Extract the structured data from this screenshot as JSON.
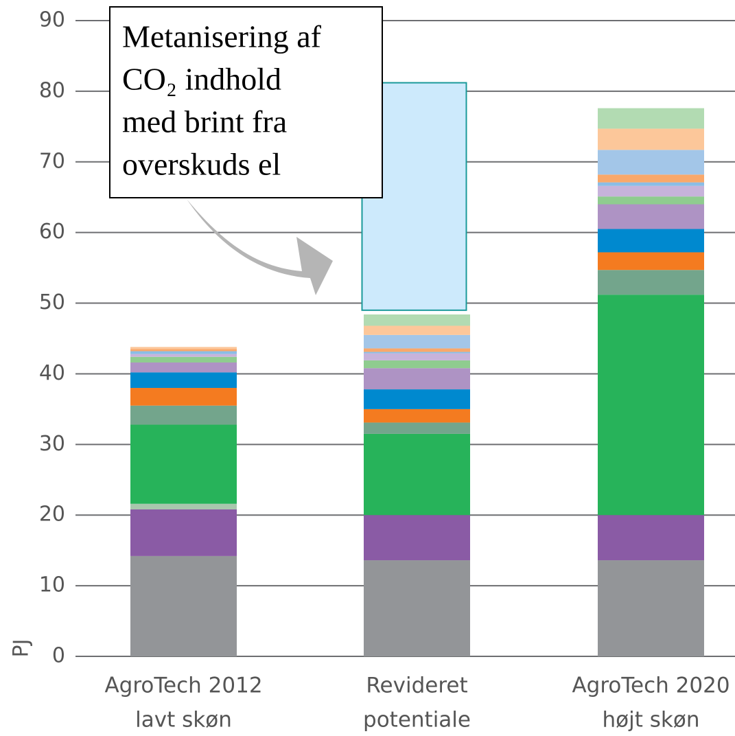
{
  "chart_data": {
    "type": "stacked_bar",
    "y_label": "PJ",
    "categories": [
      [
        "AgroTech 2012",
        "lavt skøn"
      ],
      [
        "Revideret",
        "potentiale"
      ],
      [
        "AgroTech 2020",
        "højt skøn"
      ]
    ],
    "ylim": [
      0,
      90
    ],
    "yticks": [
      0,
      10,
      20,
      30,
      40,
      50,
      60,
      70,
      80,
      90
    ],
    "grid": true,
    "series": [
      {
        "color": "#939598",
        "values": [
          14.2,
          13.6,
          13.6
        ]
      },
      {
        "color": "#8a5ba5",
        "values": [
          6.6,
          6.4,
          6.4
        ]
      },
      {
        "color": "#a9c7ad",
        "values": [
          0.8,
          0,
          0
        ]
      },
      {
        "color": "#27b35a",
        "values": [
          11.2,
          11.5,
          31.2
        ]
      },
      {
        "color": "#73a58c",
        "values": [
          2.7,
          1.6,
          3.5
        ]
      },
      {
        "color": "#f47b20",
        "values": [
          2.5,
          1.9,
          2.5
        ]
      },
      {
        "color": "#0089cf",
        "values": [
          2.2,
          2.8,
          3.3
        ]
      },
      {
        "color": "#ae93c4",
        "values": [
          1.4,
          3.0,
          3.5
        ]
      },
      {
        "color": "#8fcc8f",
        "values": [
          0.8,
          1.1,
          1.1
        ]
      },
      {
        "color": "#c7b3db",
        "values": [
          0.4,
          1.0,
          1.5
        ]
      },
      {
        "color": "#8bbde6",
        "values": [
          0.4,
          0.2,
          0.5
        ]
      },
      {
        "color": "#f9a86b",
        "values": [
          0.3,
          0.5,
          1.1
        ]
      },
      {
        "color": "#a3c6e8",
        "values": [
          0,
          1.9,
          3.5
        ]
      },
      {
        "color": "#fcc79a",
        "values": [
          0.3,
          1.3,
          3.0
        ]
      },
      {
        "color": "#b2dbb2",
        "values": [
          0,
          1.6,
          2.9
        ]
      }
    ],
    "annotation": {
      "lines": [
        "Metanisering af",
        "CO₂ indhold",
        "med brint fra",
        "overskuds el"
      ],
      "category": 1,
      "box_range": [
        49.0,
        81.2
      ],
      "box_color": "#cdeafc"
    }
  }
}
